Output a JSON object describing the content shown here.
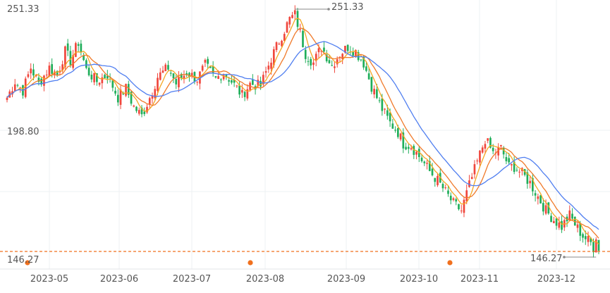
{
  "chart_data": {
    "type": "candlestick",
    "y_ticks": [
      "251.33",
      "198.80"
    ],
    "y_tick_values": [
      251.33,
      198.8
    ],
    "ylim": [
      146.27,
      251.33
    ],
    "x_labels": [
      "2023-05",
      "2023-06",
      "2023-07",
      "2023-08",
      "2023-09",
      "2023-10",
      "2023-11",
      "2023-12"
    ],
    "max_label": "251.33",
    "min_label": "146.27",
    "current_price_label": "146.27",
    "current_price": 146.27,
    "markers": [
      {
        "date": "2023-04-10",
        "color": "#f0701e"
      },
      {
        "date": "2023-07-27",
        "color": "#f0701e"
      },
      {
        "date": "2023-10-18",
        "color": "#f0701e"
      }
    ],
    "colors": {
      "up": "#f0463c",
      "down": "#1fae5a",
      "ma_short": "#f5a623",
      "ma_mid": "#f07a2a",
      "ma_long": "#4f7ef0",
      "price_line": "#f0701e"
    },
    "series": [
      {
        "name": "",
        "anchors": [
          [
            0,
            213
          ],
          [
            3,
            220
          ],
          [
            6,
            216
          ],
          [
            9,
            226
          ],
          [
            12,
            219
          ],
          [
            16,
            226
          ],
          [
            19,
            223
          ],
          [
            22,
            233
          ],
          [
            24,
            229
          ],
          [
            27,
            237
          ],
          [
            30,
            225
          ],
          [
            34,
            220
          ],
          [
            38,
            223
          ],
          [
            42,
            213
          ],
          [
            45,
            217
          ],
          [
            48,
            209
          ],
          [
            51,
            205
          ],
          [
            54,
            213
          ],
          [
            57,
            222
          ],
          [
            61,
            226
          ],
          [
            64,
            219
          ],
          [
            68,
            224
          ],
          [
            72,
            221
          ],
          [
            75,
            227
          ],
          [
            79,
            221
          ],
          [
            82,
            224
          ],
          [
            85,
            220
          ],
          [
            89,
            214
          ],
          [
            92,
            219
          ],
          [
            96,
            218
          ],
          [
            100,
            230
          ],
          [
            104,
            240
          ],
          [
            107,
            247
          ],
          [
            109,
            249
          ],
          [
            111,
            241
          ],
          [
            113,
            232
          ],
          [
            116,
            228
          ],
          [
            119,
            235
          ],
          [
            123,
            227
          ],
          [
            126,
            232
          ],
          [
            129,
            235
          ],
          [
            132,
            233
          ],
          [
            135,
            228
          ],
          [
            138,
            218
          ],
          [
            142,
            208
          ],
          [
            145,
            202
          ],
          [
            148,
            198
          ],
          [
            150,
            193
          ],
          [
            153,
            192
          ],
          [
            157,
            186
          ],
          [
            160,
            181
          ],
          [
            163,
            177
          ],
          [
            166,
            172
          ],
          [
            169,
            167
          ],
          [
            172,
            164
          ],
          [
            175,
            175
          ],
          [
            178,
            185
          ],
          [
            181,
            195
          ],
          [
            184,
            189
          ],
          [
            187,
            191
          ],
          [
            190,
            183
          ],
          [
            192,
            183
          ],
          [
            195,
            180
          ],
          [
            198,
            176
          ],
          [
            201,
            170
          ],
          [
            204,
            164
          ],
          [
            207,
            160
          ],
          [
            210,
            157
          ],
          [
            213,
            162
          ],
          [
            215,
            158
          ],
          [
            218,
            153
          ],
          [
            221,
            150
          ],
          [
            223,
            146
          ]
        ]
      }
    ]
  }
}
